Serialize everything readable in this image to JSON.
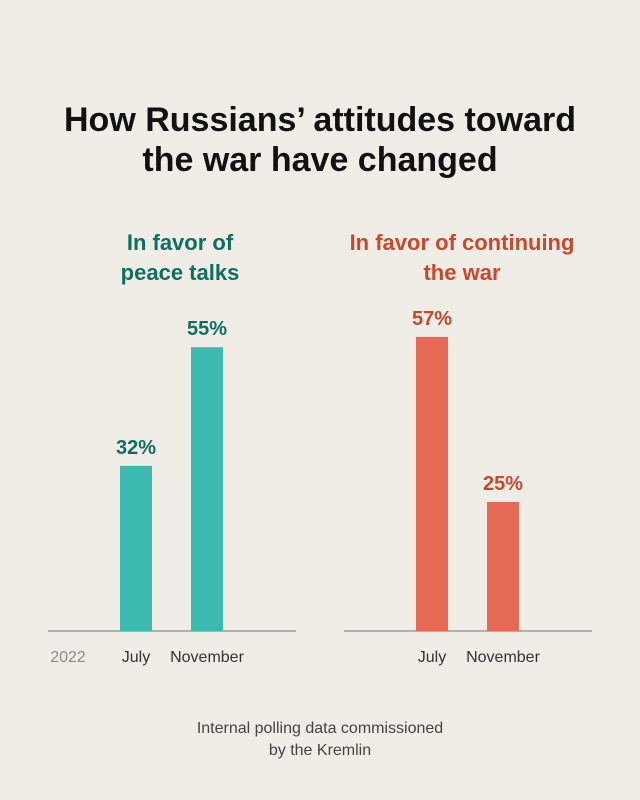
{
  "title": {
    "line1": "How Russians’ attitudes toward",
    "line2": "the war have changed"
  },
  "year_label": "2022",
  "footer": {
    "line1": "Internal polling data commissioned",
    "line2": "by the Kremlin"
  },
  "colors": {
    "peace": "#3dbab0",
    "peace_text": "#0f6e62",
    "war": "#e56a55",
    "war_text": "#c8482e"
  },
  "chart_data": [
    {
      "type": "bar",
      "title": "In favor of peace talks",
      "title_lines": [
        "In favor of",
        "peace talks"
      ],
      "categories": [
        "July",
        "November"
      ],
      "values": [
        32,
        55
      ],
      "value_labels": [
        "32%",
        "55%"
      ],
      "ylim": [
        0,
        100
      ],
      "grid": false
    },
    {
      "type": "bar",
      "title": "In favor of continuing the war",
      "title_lines": [
        "In favor of continuing",
        "the war"
      ],
      "categories": [
        "July",
        "November"
      ],
      "values": [
        57,
        25
      ],
      "value_labels": [
        "57%",
        "25%"
      ],
      "ylim": [
        0,
        100
      ],
      "grid": false
    }
  ]
}
